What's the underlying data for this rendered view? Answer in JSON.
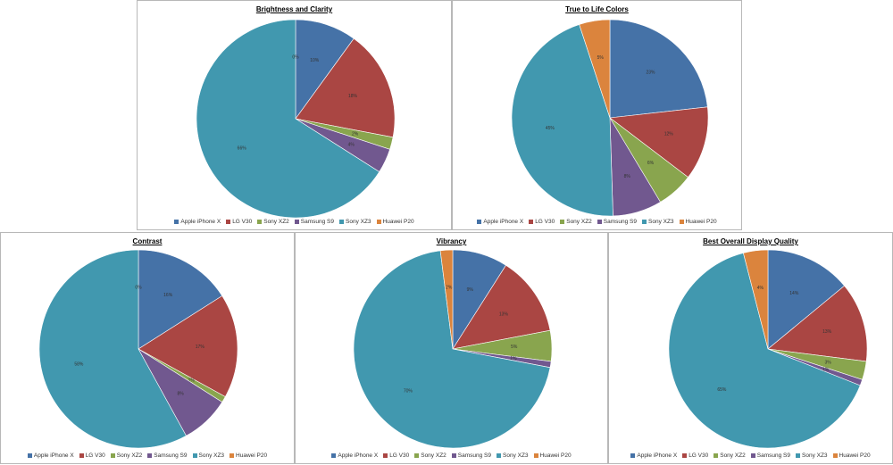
{
  "chart_data": [
    {
      "type": "pie",
      "title": "Brightness and Clarity",
      "categories": [
        "Apple iPhone X",
        "LG V30",
        "Sony XZ2",
        "Samsung S9",
        "Sony XZ3",
        "Huawei P20"
      ],
      "values": [
        10,
        18,
        2,
        4,
        66,
        0
      ],
      "labels": [
        "10%",
        "18%",
        "2%",
        "4%",
        "66%",
        "0%"
      ]
    },
    {
      "type": "pie",
      "title": "True to Life Colors",
      "categories": [
        "Apple iPhone X",
        "LG V30",
        "Sony XZ2",
        "Samsung S9",
        "Sony XZ3",
        "Huawei P20"
      ],
      "values": [
        23,
        12,
        6,
        8,
        45,
        5
      ],
      "labels": [
        "23%",
        "12%",
        "6%",
        "8%",
        "45%",
        "5%"
      ]
    },
    {
      "type": "pie",
      "title": "Contrast",
      "categories": [
        "Apple iPhone X",
        "LG V30",
        "Sony XZ2",
        "Samsung S9",
        "Sony XZ3",
        "Huawei P20"
      ],
      "values": [
        16,
        17,
        1,
        8,
        58,
        0
      ],
      "labels": [
        "16%",
        "17%",
        "1%",
        "8%",
        "58%",
        "0%"
      ]
    },
    {
      "type": "pie",
      "title": "Vibrancy",
      "categories": [
        "Apple iPhone X",
        "LG V30",
        "Sony XZ2",
        "Samsung S9",
        "Sony XZ3",
        "Huawei P20"
      ],
      "values": [
        9,
        13,
        5,
        1,
        70,
        2
      ],
      "labels": [
        "9%",
        "13%",
        "5%",
        "1%",
        "70%",
        "2%"
      ]
    },
    {
      "type": "pie",
      "title": "Best Overall Display Quality",
      "categories": [
        "Apple iPhone X",
        "LG V30",
        "Sony XZ2",
        "Samsung S9",
        "Sony XZ3",
        "Huawei P20"
      ],
      "values": [
        14,
        13,
        3,
        1,
        65,
        4
      ],
      "labels": [
        "14%",
        "13%",
        "3%",
        "1%",
        "65%",
        "4%"
      ]
    }
  ],
  "colors": [
    "#4572a7",
    "#aa4643",
    "#89a54e",
    "#71588f",
    "#4198af",
    "#db843d"
  ]
}
